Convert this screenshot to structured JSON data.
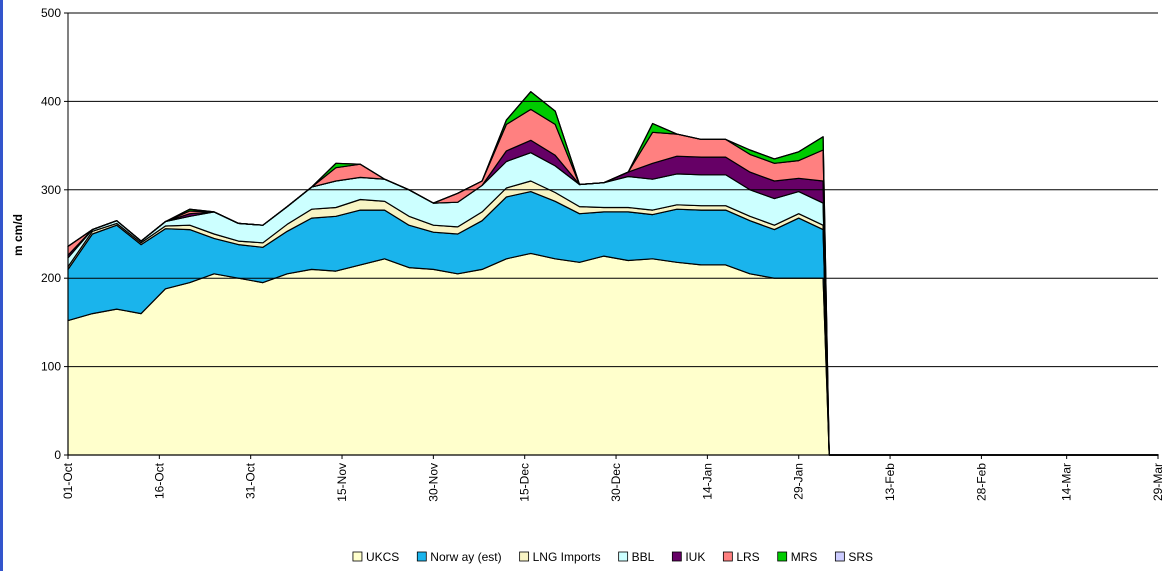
{
  "chart_data": {
    "type": "stacked-area",
    "y_label": "m cm/d",
    "x": [
      "01-Oct",
      "05-Oct",
      "09-Oct",
      "13-Oct",
      "17-Oct",
      "21-Oct",
      "25-Oct",
      "29-Oct",
      "02-Nov",
      "06-Nov",
      "10-Nov",
      "14-Nov",
      "18-Nov",
      "22-Nov",
      "26-Nov",
      "30-Nov",
      "04-Dec",
      "08-Dec",
      "12-Dec",
      "16-Dec",
      "20-Dec",
      "24-Dec",
      "28-Dec",
      "01-Jan",
      "05-Jan",
      "09-Jan",
      "13-Jan",
      "17-Jan",
      "21-Jan",
      "25-Jan",
      "29-Jan",
      "02-Feb",
      "03-Feb",
      "29-Mar"
    ],
    "series": [
      {
        "name": "UKCS",
        "color": "#ffffcc",
        "values": [
          152,
          160,
          165,
          160,
          188,
          195,
          205,
          200,
          195,
          205,
          210,
          208,
          215,
          222,
          212,
          210,
          205,
          210,
          222,
          228,
          222,
          218,
          225,
          220,
          222,
          218,
          215,
          215,
          205,
          200,
          200,
          200,
          0,
          0
        ]
      },
      {
        "name": "Norw ay (est)",
        "color": "#1ab4ec",
        "values": [
          58,
          90,
          95,
          78,
          68,
          60,
          40,
          38,
          40,
          48,
          58,
          62,
          62,
          55,
          48,
          42,
          45,
          55,
          70,
          70,
          65,
          55,
          50,
          55,
          50,
          60,
          62,
          62,
          60,
          55,
          68,
          55,
          0,
          0
        ]
      },
      {
        "name": "LNG Imports",
        "color": "#f8f4c4",
        "values": [
          3,
          3,
          2,
          2,
          3,
          5,
          5,
          4,
          5,
          8,
          10,
          10,
          12,
          10,
          10,
          8,
          8,
          10,
          10,
          12,
          10,
          8,
          5,
          5,
          5,
          5,
          5,
          5,
          5,
          5,
          5,
          5,
          0,
          0
        ]
      },
      {
        "name": "BBL",
        "color": "#ccffff",
        "values": [
          10,
          2,
          3,
          2,
          5,
          10,
          25,
          20,
          20,
          20,
          25,
          30,
          25,
          25,
          30,
          25,
          28,
          30,
          30,
          32,
          30,
          25,
          28,
          35,
          35,
          35,
          35,
          35,
          30,
          30,
          25,
          25,
          0,
          0
        ]
      },
      {
        "name": "IUK",
        "color": "#660066",
        "values": [
          3,
          0,
          0,
          0,
          0,
          3,
          0,
          0,
          0,
          0,
          0,
          0,
          0,
          0,
          0,
          0,
          0,
          0,
          12,
          14,
          12,
          0,
          0,
          5,
          18,
          20,
          20,
          20,
          20,
          20,
          15,
          25,
          0,
          0
        ]
      },
      {
        "name": "LRS",
        "color": "#ff8080",
        "values": [
          10,
          0,
          0,
          0,
          0,
          3,
          0,
          0,
          0,
          0,
          0,
          15,
          15,
          0,
          0,
          0,
          10,
          5,
          30,
          35,
          35,
          0,
          0,
          0,
          35,
          25,
          20,
          20,
          20,
          20,
          20,
          35,
          0,
          0
        ]
      },
      {
        "name": "MRS",
        "color": "#00cc00",
        "values": [
          0,
          0,
          0,
          0,
          0,
          2,
          0,
          0,
          0,
          0,
          0,
          5,
          0,
          0,
          0,
          0,
          0,
          0,
          5,
          20,
          15,
          0,
          0,
          0,
          10,
          0,
          0,
          0,
          5,
          5,
          10,
          15,
          0,
          0
        ]
      },
      {
        "name": "SRS",
        "color": "#ccccff",
        "values": [
          0,
          0,
          0,
          0,
          0,
          0,
          0,
          0,
          0,
          0,
          0,
          0,
          0,
          0,
          0,
          0,
          0,
          0,
          0,
          0,
          0,
          0,
          0,
          0,
          0,
          0,
          0,
          0,
          0,
          0,
          0,
          0,
          0,
          0
        ]
      }
    ],
    "ylim": [
      0,
      500
    ],
    "yticks": [
      0,
      100,
      200,
      300,
      400,
      500
    ],
    "xlim": [
      "01-Oct",
      "29-Mar"
    ],
    "xticks": [
      "01-Oct",
      "16-Oct",
      "31-Oct",
      "15-Nov",
      "30-Nov",
      "15-Dec",
      "30-Dec",
      "14-Jan",
      "29-Jan",
      "13-Feb",
      "28-Feb",
      "14-Mar",
      "29-Mar"
    ],
    "grid": true,
    "legend": "bottom"
  }
}
